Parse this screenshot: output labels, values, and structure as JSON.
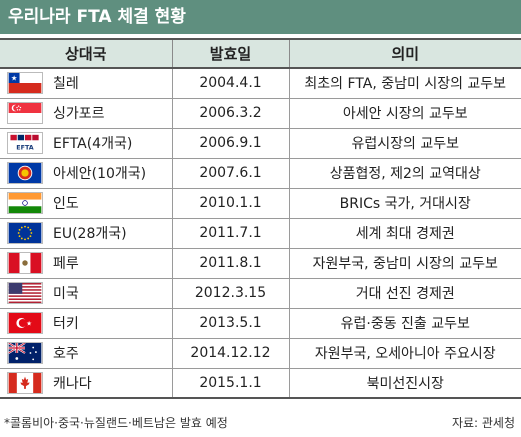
{
  "title": "우리나라 FTA 체결 현황",
  "headers": {
    "country": "상대국",
    "date": "발효일",
    "meaning": "의미"
  },
  "rows": [
    {
      "flag": "chile-flag-icon",
      "country": "칠레",
      "date": "2004.4.1",
      "meaning": "최초의 FTA, 중남미 시장의 교두보"
    },
    {
      "flag": "singapore-flag-icon",
      "country": "싱가포르",
      "date": "2006.3.2",
      "meaning": "아세안 시장의 교두보"
    },
    {
      "flag": "efta-flag-icon",
      "country": "EFTA(4개국)",
      "date": "2006.9.1",
      "meaning": "유럽시장의 교두보"
    },
    {
      "flag": "asean-flag-icon",
      "country": "아세안(10개국)",
      "date": "2007.6.1",
      "meaning": "상품협정, 제2의 교역대상"
    },
    {
      "flag": "india-flag-icon",
      "country": "인도",
      "date": "2010.1.1",
      "meaning": "BRICs 국가, 거대시장"
    },
    {
      "flag": "eu-flag-icon",
      "country": "EU(28개국)",
      "date": "2011.7.1",
      "meaning": "세계 최대 경제권"
    },
    {
      "flag": "peru-flag-icon",
      "country": "페루",
      "date": "2011.8.1",
      "meaning": "자원부국, 중남미 시장의 교두보"
    },
    {
      "flag": "usa-flag-icon",
      "country": "미국",
      "date": "2012.3.15",
      "meaning": "거대 선진 경제권"
    },
    {
      "flag": "turkey-flag-icon",
      "country": "터키",
      "date": "2013.5.1",
      "meaning": "유럽·중동 진출 교두보"
    },
    {
      "flag": "australia-flag-icon",
      "country": "호주",
      "date": "2014.12.12",
      "meaning": "자원부국, 오세아니아 주요시장"
    },
    {
      "flag": "canada-flag-icon",
      "country": "캐나다",
      "date": "2015.1.1",
      "meaning": "북미선진시장"
    }
  ],
  "efta_label": "EFTA",
  "footer": {
    "note": "*콜롬비아·중국·뉴질랜드·베트남은 발효 예정",
    "source": "자료: 관세청"
  }
}
